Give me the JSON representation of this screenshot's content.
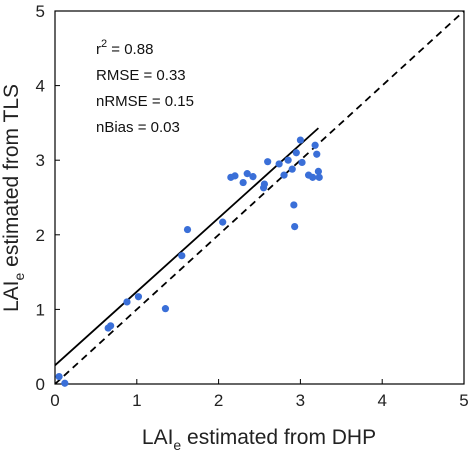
{
  "chart_data": {
    "type": "scatter",
    "xlabel": {
      "main": "LAI",
      "sub": "e",
      "rest": " estimated from DHP"
    },
    "ylabel": {
      "main": "LAI",
      "sub": "e",
      "rest": " estimated from TLS"
    },
    "xlim": [
      0,
      5
    ],
    "ylim": [
      0,
      5
    ],
    "x_ticks": [
      "0",
      "1",
      "2",
      "3",
      "4",
      "5"
    ],
    "y_ticks": [
      "0",
      "1",
      "2",
      "3",
      "4",
      "5"
    ],
    "grid": false,
    "point_color": "#3a6fd8",
    "points": [
      {
        "x": 0.05,
        "y": 0.1
      },
      {
        "x": 0.12,
        "y": 0.01
      },
      {
        "x": 0.65,
        "y": 0.75
      },
      {
        "x": 0.68,
        "y": 0.78
      },
      {
        "x": 0.88,
        "y": 1.1
      },
      {
        "x": 1.02,
        "y": 1.17
      },
      {
        "x": 1.35,
        "y": 1.01
      },
      {
        "x": 1.55,
        "y": 1.72
      },
      {
        "x": 1.62,
        "y": 2.07
      },
      {
        "x": 2.05,
        "y": 2.17
      },
      {
        "x": 2.15,
        "y": 2.77
      },
      {
        "x": 2.2,
        "y": 2.79
      },
      {
        "x": 2.3,
        "y": 2.7
      },
      {
        "x": 2.35,
        "y": 2.82
      },
      {
        "x": 2.42,
        "y": 2.78
      },
      {
        "x": 2.55,
        "y": 2.63
      },
      {
        "x": 2.56,
        "y": 2.68
      },
      {
        "x": 2.6,
        "y": 2.98
      },
      {
        "x": 2.74,
        "y": 2.95
      },
      {
        "x": 2.8,
        "y": 2.8
      },
      {
        "x": 2.85,
        "y": 3.0
      },
      {
        "x": 2.9,
        "y": 2.88
      },
      {
        "x": 2.92,
        "y": 2.4
      },
      {
        "x": 2.93,
        "y": 2.11
      },
      {
        "x": 2.95,
        "y": 3.1
      },
      {
        "x": 3.0,
        "y": 3.27
      },
      {
        "x": 3.02,
        "y": 2.97
      },
      {
        "x": 3.1,
        "y": 2.8
      },
      {
        "x": 3.15,
        "y": 2.77
      },
      {
        "x": 3.18,
        "y": 3.2
      },
      {
        "x": 3.2,
        "y": 3.08
      },
      {
        "x": 3.22,
        "y": 2.85
      },
      {
        "x": 3.23,
        "y": 2.77
      }
    ],
    "fit_line": {
      "x": [
        0,
        3.22
      ],
      "y": [
        0.25,
        3.43
      ],
      "style": "solid"
    },
    "identity_line": {
      "x": [
        0,
        5
      ],
      "y": [
        0,
        5
      ],
      "style": "dashed"
    },
    "stats": {
      "r2": {
        "base": "r",
        "sup": "2",
        "rest": " = 0.88"
      },
      "lines": [
        "RMSE = 0.33",
        "nRMSE = 0.15",
        "nBias = 0.03"
      ]
    }
  }
}
